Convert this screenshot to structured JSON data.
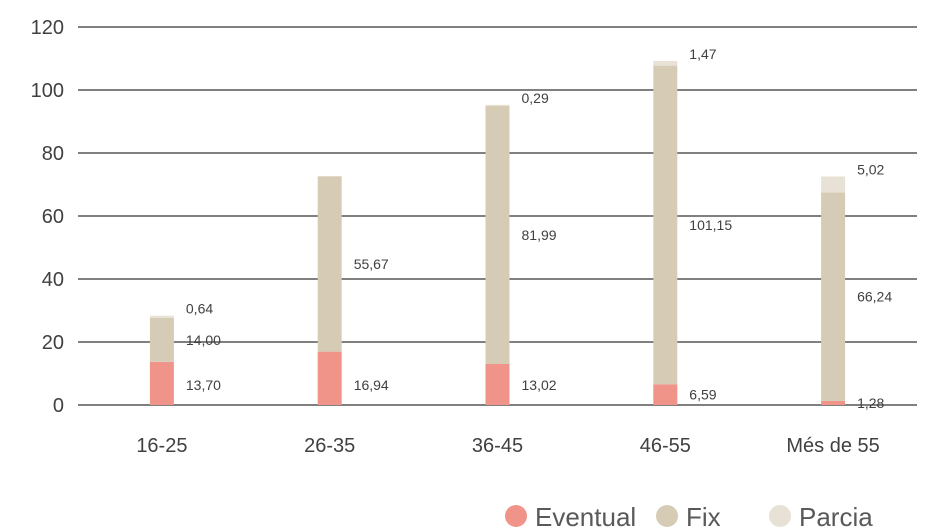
{
  "chart_data": {
    "type": "bar",
    "stacked": true,
    "categories": [
      "16-25",
      "26-35",
      "36-45",
      "46-55",
      "Més de 55"
    ],
    "series": [
      {
        "name": "Eventual",
        "values": [
          13.7,
          16.94,
          13.02,
          6.59,
          1.28
        ],
        "labels": [
          "13,70",
          "16,94",
          "13,02",
          "6,59",
          "1,28"
        ],
        "color": "#f0948a"
      },
      {
        "name": "Fix",
        "values": [
          14.0,
          55.67,
          81.99,
          101.15,
          66.24
        ],
        "labels": [
          "14,00",
          "55,67",
          "81,99",
          "101,15",
          "66,24"
        ],
        "color": "#d6ccb6"
      },
      {
        "name": "Parcia",
        "values": [
          0.64,
          0.0,
          0.29,
          1.47,
          5.02
        ],
        "labels": [
          "0,64",
          "",
          "0,29",
          "1,47",
          "5,02"
        ],
        "color": "#e8e2d6"
      }
    ],
    "ylim": [
      0,
      120
    ],
    "yticks": [
      0,
      20,
      40,
      60,
      80,
      100,
      120
    ],
    "grid": true,
    "legend_position": "bottom-right"
  }
}
